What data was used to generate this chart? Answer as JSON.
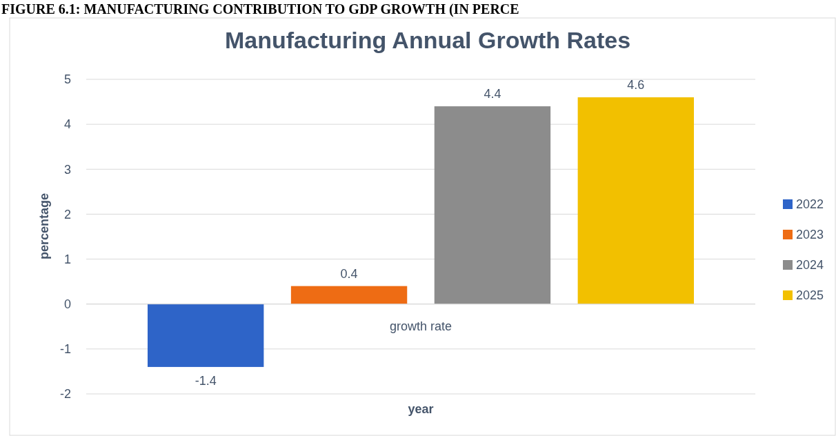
{
  "chart_data": {
    "type": "bar",
    "title": "Manufacturing  Annual Growth Rates",
    "xlabel": "year",
    "ylabel": "percentage",
    "annotations": [
      "FIGURE 6.1: MANUFACTURING CONTRIBUTION TO GDP GROWTH (IN PERCE"
    ],
    "categories": [
      "growth rate"
    ],
    "series": [
      {
        "name": "2022",
        "color": "#2e64c8",
        "values": [
          -1.4
        ]
      },
      {
        "name": "2023",
        "color": "#ee6c14",
        "values": [
          0.4
        ]
      },
      {
        "name": "2024",
        "color": "#8c8c8c",
        "values": [
          4.4
        ]
      },
      {
        "name": "2025",
        "color": "#f2c000",
        "values": [
          4.6
        ]
      }
    ],
    "ylim": [
      -2,
      5
    ],
    "yticks": [
      -2,
      -1,
      0,
      1,
      2,
      3,
      4,
      5
    ],
    "grid": "y",
    "legend": "right",
    "data_labels": true
  }
}
